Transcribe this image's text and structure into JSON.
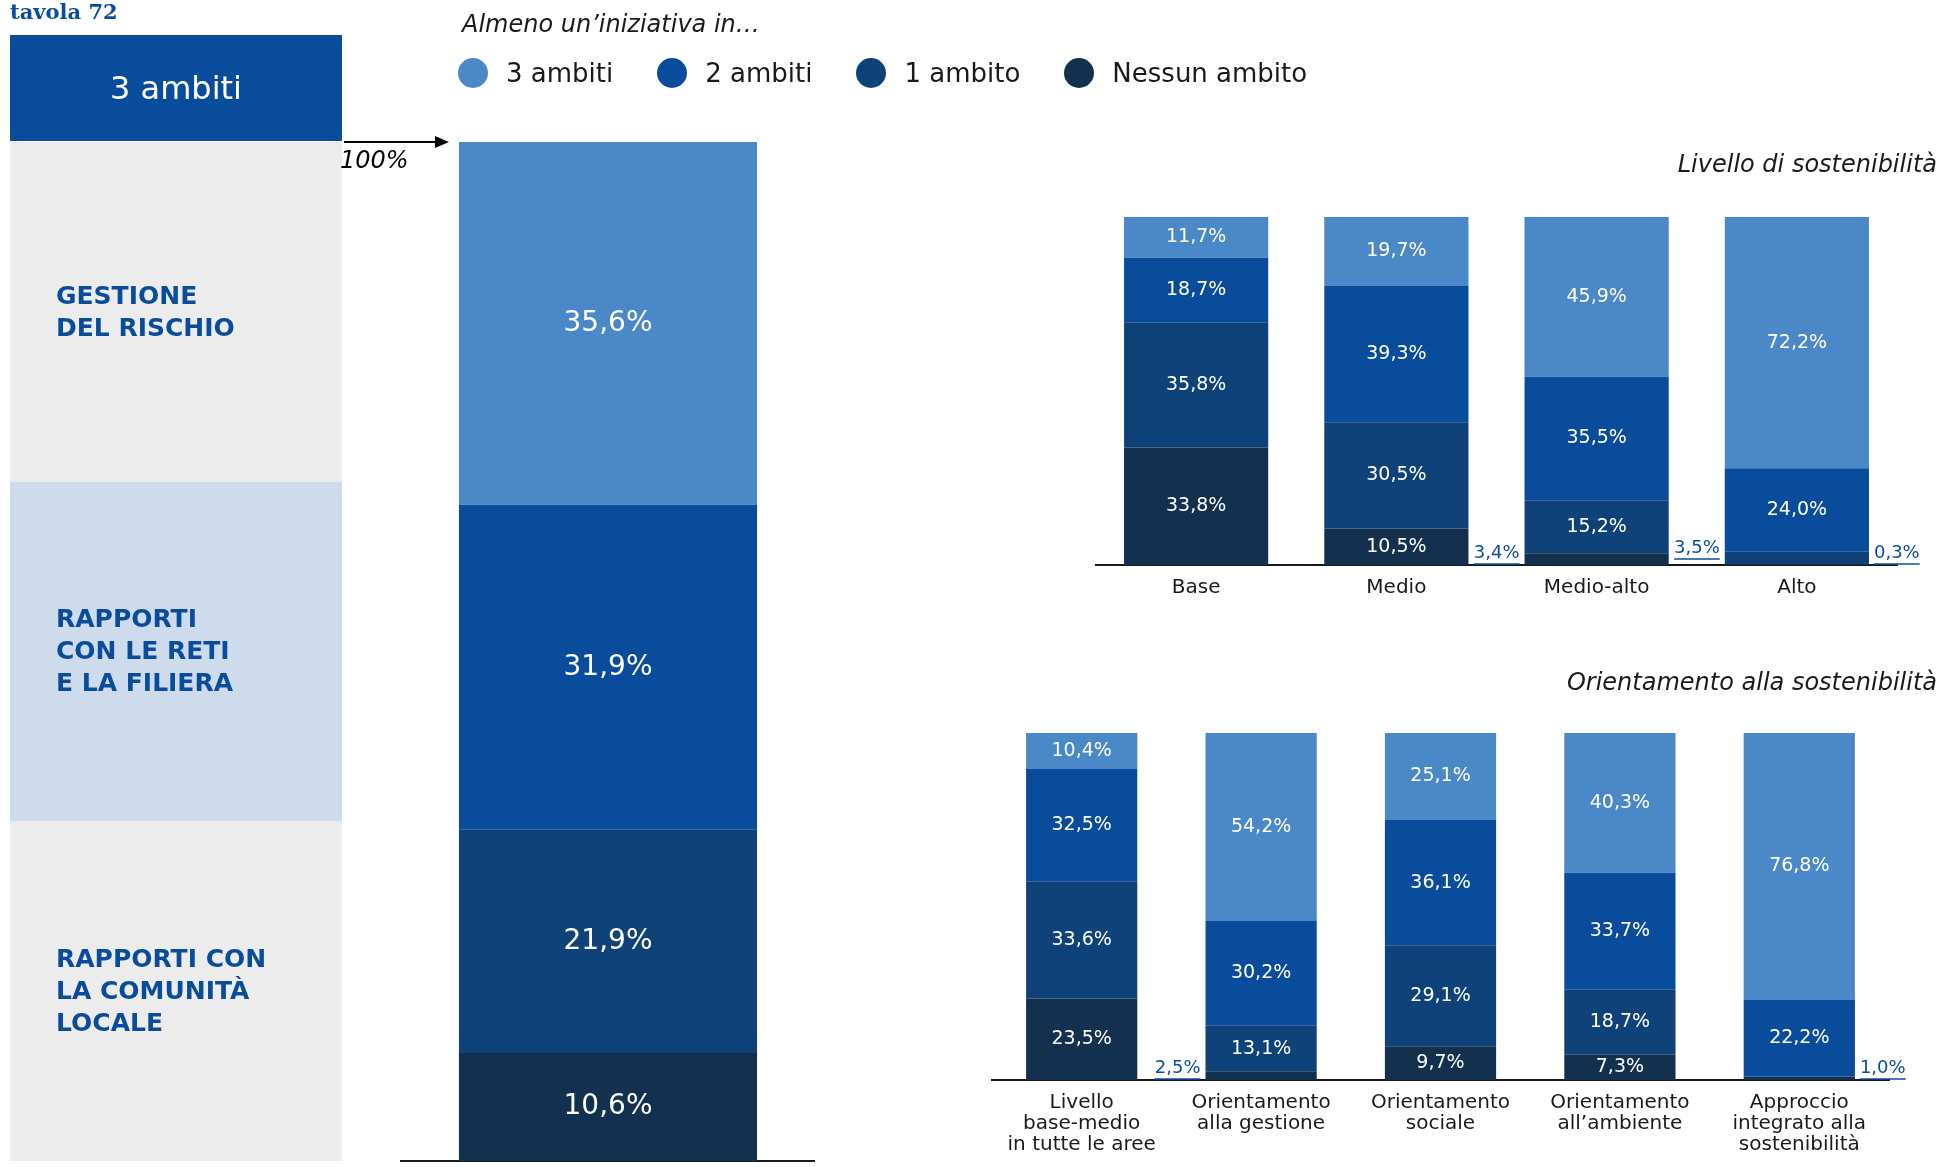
{
  "chart_data": [
    {
      "type": "other",
      "title": "3 ambiti",
      "annotations": [
        "tavola 72",
        "GESTIONE\nDEL RISCHIO",
        "RAPPORTI\nCON LE RETI\nE LA FILIERA",
        "RAPPORTI CON\nLA COMUNITÀ\nLOCALE"
      ]
    },
    {
      "type": "bar",
      "title": "Almeno un’iniziativa in…",
      "categories": [
        null
      ],
      "stacked": true,
      "ylim": [
        0,
        100
      ],
      "tick_labels": false,
      "grid": false,
      "legend": "top",
      "annotations": [
        "100%"
      ],
      "series": [
        {
          "name": "Nessun ambito",
          "color": "#13314f",
          "values": [
            10.6
          ],
          "value_labels": [
            "10,6%"
          ]
        },
        {
          "name": "1 ambito",
          "color": "#10427a",
          "values": [
            21.9
          ],
          "value_labels": [
            "21,9%"
          ]
        },
        {
          "name": "2 ambiti",
          "color": "#0a4c9c",
          "values": [
            31.9
          ],
          "value_labels": [
            "31,9%"
          ]
        },
        {
          "name": "3 ambiti",
          "color": "#4a88c7",
          "values": [
            35.6
          ],
          "value_labels": [
            "35,6%"
          ]
        }
      ]
    },
    {
      "type": "bar",
      "title": "Livello di sostenibilità",
      "categories": [
        "Base",
        "Medio",
        "Medio-alto",
        "Alto"
      ],
      "stacked": true,
      "ylim": [
        0,
        100
      ],
      "tick_labels": "x",
      "grid": false,
      "series": [
        {
          "color": "#13314f",
          "values": [
            33.8,
            10.5,
            3.4,
            0.3
          ],
          "value_labels": [
            "33,8%",
            "10,5%",
            "3,4%",
            "0,3%"
          ]
        },
        {
          "color": "#10427a",
          "values": [
            35.8,
            30.5,
            15.2,
            3.5
          ],
          "value_labels": [
            "35,8%",
            "30,5%",
            "15,2%",
            "3,5%"
          ]
        },
        {
          "color": "#0a4c9c",
          "values": [
            18.7,
            39.3,
            35.5,
            24.0
          ],
          "value_labels": [
            "18,7%",
            "39,3%",
            "35,5%",
            "24,0%"
          ]
        },
        {
          "color": "#4a88c7",
          "values": [
            11.7,
            19.7,
            45.9,
            72.2
          ],
          "value_labels": [
            "11,7%",
            "19,7%",
            "45,9%",
            "72,2%"
          ]
        }
      ]
    },
    {
      "type": "bar",
      "title": "Orientamento alla sostenibilità",
      "categories": [
        "Livello\nbase-medio\nin tutte le aree",
        "Orientamento\nalla gestione",
        "Orientamento\nsociale",
        "Orientamento\nall’ambiente",
        "Approccio\nintegrato alla\nsostenibilità"
      ],
      "stacked": true,
      "ylim": [
        0,
        100
      ],
      "tick_labels": "x",
      "grid": false,
      "series": [
        {
          "color": "#13314f",
          "values": [
            23.5,
            2.5,
            9.7,
            7.3,
            1.0
          ],
          "value_labels": [
            "23,5%",
            "2,5%",
            "9,7%",
            "7,3%",
            "1,0%"
          ]
        },
        {
          "color": "#10427a",
          "values": [
            33.6,
            13.1,
            29.1,
            18.7,
            null
          ],
          "value_labels": [
            "33,6%",
            "13,1%",
            "29,1%",
            "18,7%",
            null
          ]
        },
        {
          "color": "#0a4c9c",
          "values": [
            32.5,
            30.2,
            36.1,
            33.7,
            22.2
          ],
          "value_labels": [
            "32,5%",
            "30,2%",
            "36,1%",
            "33,7%",
            "22,2%"
          ]
        },
        {
          "color": "#4a88c7",
          "values": [
            10.4,
            54.2,
            25.1,
            40.3,
            76.8
          ],
          "value_labels": [
            "10,4%",
            "54,2%",
            "25,1%",
            "40,3%",
            "76,8%"
          ]
        }
      ]
    }
  ]
}
